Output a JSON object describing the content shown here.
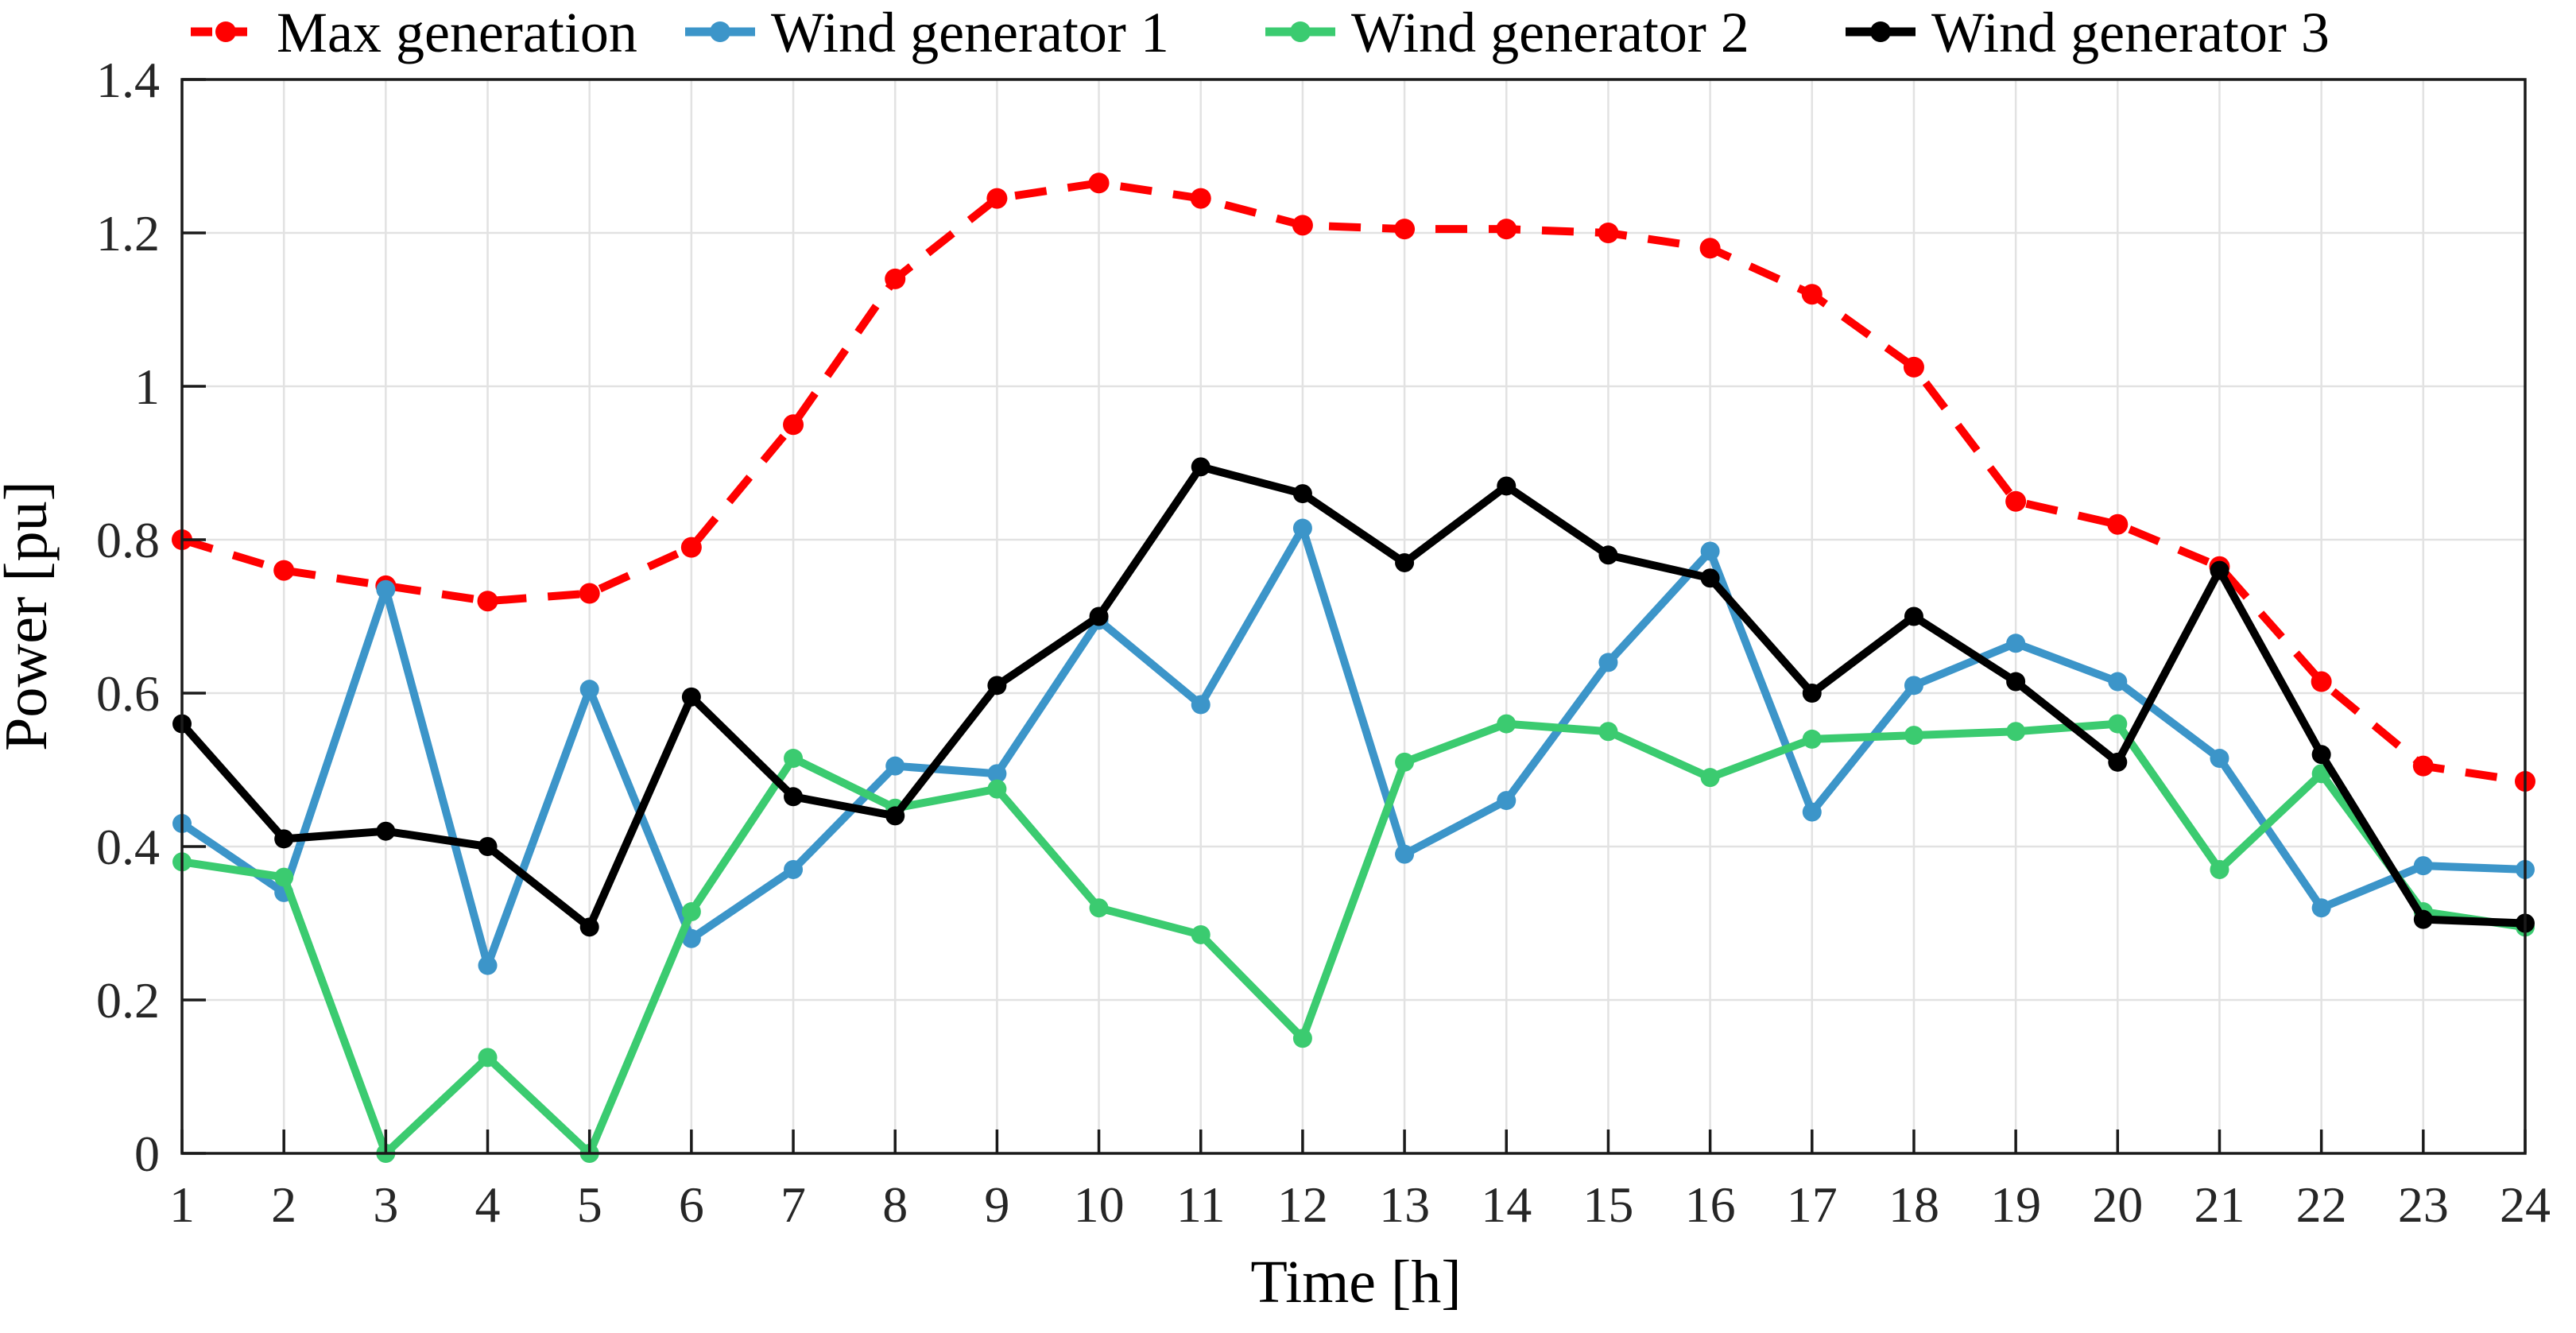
{
  "chart_data": {
    "type": "line",
    "title": "",
    "xlabel": "Time [h]",
    "ylabel": "Power [pu]",
    "x": [
      1,
      2,
      3,
      4,
      5,
      6,
      7,
      8,
      9,
      10,
      11,
      12,
      13,
      14,
      15,
      16,
      17,
      18,
      19,
      20,
      21,
      22,
      23,
      24
    ],
    "xlim": [
      1,
      24
    ],
    "ylim": [
      0,
      1.4
    ],
    "xticks": [
      1,
      2,
      3,
      4,
      5,
      6,
      7,
      8,
      9,
      10,
      11,
      12,
      13,
      14,
      15,
      16,
      17,
      18,
      19,
      20,
      21,
      22,
      23,
      24
    ],
    "yticks": [
      0,
      0.2,
      0.4,
      0.6,
      0.8,
      1,
      1.2,
      1.4
    ],
    "ytick_labels": [
      "0",
      "0.2",
      "0.4",
      "0.6",
      "0.8",
      "1",
      "1.2",
      "1.4"
    ],
    "grid": true,
    "grid_color": "#e2e2e2",
    "axis_color": "#1a1a1a",
    "legend_position": "top",
    "series": [
      {
        "name": "Max generation",
        "color": "#ff0000",
        "style": "dashed",
        "marker": "circle",
        "values": [
          0.8,
          0.76,
          0.74,
          0.72,
          0.73,
          0.79,
          0.95,
          1.14,
          1.245,
          1.265,
          1.245,
          1.21,
          1.205,
          1.205,
          1.2,
          1.18,
          1.12,
          1.025,
          0.85,
          0.82,
          0.765,
          0.615,
          0.505,
          0.485
        ]
      },
      {
        "name": "Wind generator 1",
        "color": "#3c95c9",
        "style": "solid",
        "marker": "circle",
        "values": [
          0.43,
          0.34,
          0.735,
          0.245,
          0.605,
          0.28,
          0.37,
          0.505,
          0.495,
          0.695,
          0.585,
          0.815,
          0.39,
          0.46,
          0.64,
          0.785,
          0.445,
          0.61,
          0.665,
          0.615,
          0.515,
          0.32,
          0.375,
          0.37
        ]
      },
      {
        "name": "Wind generator 2",
        "color": "#3bcb70",
        "style": "solid",
        "marker": "circle",
        "values": [
          0.38,
          0.36,
          0.0,
          0.125,
          0.0,
          0.315,
          0.515,
          0.45,
          0.475,
          0.32,
          0.285,
          0.15,
          0.51,
          0.56,
          0.55,
          0.49,
          0.54,
          0.545,
          0.55,
          0.56,
          0.37,
          0.495,
          0.315,
          0.295
        ]
      },
      {
        "name": "Wind generator 3",
        "color": "#000000",
        "style": "solid",
        "marker": "circle",
        "values": [
          0.56,
          0.41,
          0.42,
          0.4,
          0.295,
          0.595,
          0.465,
          0.44,
          0.61,
          0.7,
          0.895,
          0.86,
          0.77,
          0.87,
          0.78,
          0.75,
          0.6,
          0.7,
          0.615,
          0.51,
          0.76,
          0.52,
          0.305,
          0.3
        ]
      }
    ]
  }
}
